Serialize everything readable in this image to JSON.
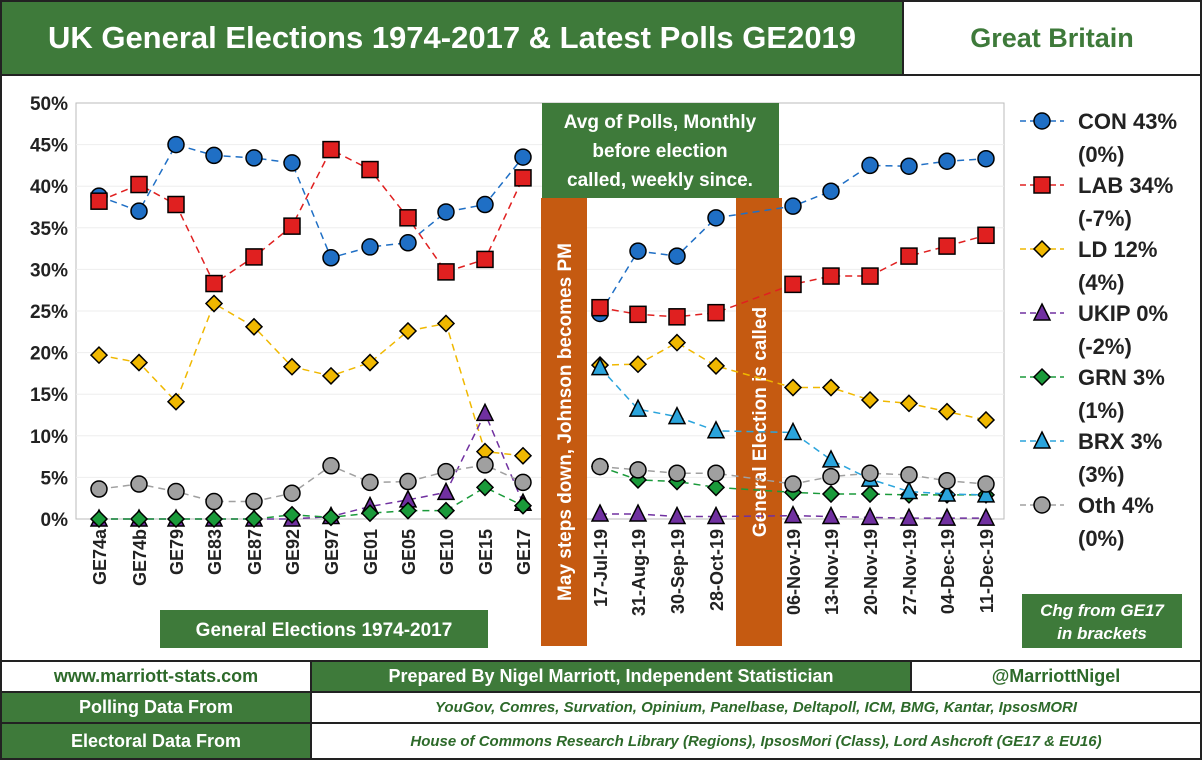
{
  "header": {
    "title": "UK General Elections 1974-2017 & Latest Polls GE2019",
    "region": "Great Britain"
  },
  "chart_data": {
    "type": "line",
    "yticks": [
      "0%",
      "5%",
      "10%",
      "15%",
      "20%",
      "25%",
      "30%",
      "35%",
      "40%",
      "45%",
      "50%"
    ],
    "ylim": [
      0,
      50
    ],
    "categories": [
      "GE74a",
      "GE74b",
      "GE79",
      "GE83",
      "GE87",
      "GE92",
      "GE97",
      "GE01",
      "GE05",
      "GE10",
      "GE15",
      "GE17",
      "17-Jul-19",
      "31-Aug-19",
      "30-Sep-19",
      "28-Oct-19",
      "06-Nov-19",
      "13-Nov-19",
      "20-Nov-19",
      "27-Nov-19",
      "04-Dec-19",
      "11-Dec-19"
    ],
    "series": [
      {
        "name": "CON 43%",
        "change": "(0%)",
        "color": "#1f6fc5",
        "marker": "circle",
        "values": [
          38.8,
          37,
          45,
          43.7,
          43.4,
          42.8,
          31.4,
          32.7,
          33.2,
          36.9,
          37.8,
          43.5,
          24.7,
          32.2,
          31.6,
          36.2,
          37.6,
          39.4,
          42.5,
          42.4,
          43.0,
          43.3
        ]
      },
      {
        "name": "LAB 34%",
        "change": "(-7%)",
        "color": "#e02020",
        "marker": "square",
        "values": [
          38.2,
          40.2,
          37.8,
          28.3,
          31.5,
          35.2,
          44.4,
          42.0,
          36.2,
          29.7,
          31.2,
          41.0,
          25.4,
          24.6,
          24.3,
          24.8,
          28.2,
          29.2,
          29.2,
          31.6,
          32.8,
          34.1
        ]
      },
      {
        "name": "LD 12%",
        "change": "(4%)",
        "color": "#f0b800",
        "marker": "diamond",
        "values": [
          19.7,
          18.8,
          14.1,
          25.9,
          23.1,
          18.3,
          17.2,
          18.8,
          22.6,
          23.5,
          8.1,
          7.6,
          18.5,
          18.6,
          21.2,
          18.4,
          15.8,
          15.8,
          14.3,
          13.9,
          12.9,
          11.9
        ]
      },
      {
        "name": "UKIP 0%",
        "change": "(-2%)",
        "color": "#7030a0",
        "marker": "triangle",
        "values": [
          0,
          0,
          0,
          0,
          0,
          0,
          0.3,
          1.5,
          2.3,
          3.2,
          12.7,
          1.9,
          0.6,
          0.6,
          0.3,
          0.3,
          0.4,
          0.3,
          0.2,
          0.1,
          0.1,
          0.1
        ]
      },
      {
        "name": "GRN 3%",
        "change": "(1%)",
        "color": "#1a9a3a",
        "marker": "diamond",
        "values": [
          0,
          0,
          0,
          0,
          0,
          0.5,
          0.2,
          0.7,
          1.0,
          1.0,
          3.8,
          1.6,
          6.3,
          4.7,
          4.5,
          3.8,
          3.2,
          3.0,
          3.0,
          2.9,
          2.9,
          2.9
        ]
      },
      {
        "name": "BRX 3%",
        "change": "(3%)",
        "color": "#2aa4dc",
        "marker": "triangle",
        "values": [
          null,
          null,
          null,
          null,
          null,
          null,
          null,
          null,
          null,
          null,
          null,
          null,
          18.2,
          13.2,
          12.3,
          10.6,
          10.4,
          7.1,
          4.8,
          3.3,
          3.0,
          2.9
        ]
      },
      {
        "name": "Oth 4%",
        "change": "(0%)",
        "color": "#a0a0a0",
        "marker": "circle",
        "values": [
          3.6,
          4.2,
          3.3,
          2.1,
          2.1,
          3.1,
          6.4,
          4.4,
          4.5,
          5.7,
          6.5,
          4.4,
          6.3,
          5.9,
          5.5,
          5.5,
          4.2,
          5.1,
          5.5,
          5.3,
          4.6,
          4.2
        ]
      }
    ],
    "annotations": {
      "avg_polls": "Avg of Polls, Monthly before election called, weekly since.",
      "may_steps": "May steps down, Johnson  becomes PM",
      "election_called": "General Election is called",
      "ge_label": "General Elections 1974-2017",
      "chg_note": "Chg from GE17 in brackets"
    }
  },
  "footer": {
    "website": "www.marriott-stats.com",
    "prepared": "Prepared By Nigel Marriott, Independent Statistician",
    "twitter": "@MarriottNigel",
    "polling_label": "Polling Data From",
    "polling_sources": "YouGov, Comres, Survation, Opinium, Panelbase, Deltapoll, ICM, BMG, Kantar, IpsosMORI",
    "electoral_label": "Electoral Data From",
    "electoral_sources": "House of Commons Research Library (Regions), IpsosMori (Class), Lord Ashcroft (GE17 & EU16)"
  }
}
